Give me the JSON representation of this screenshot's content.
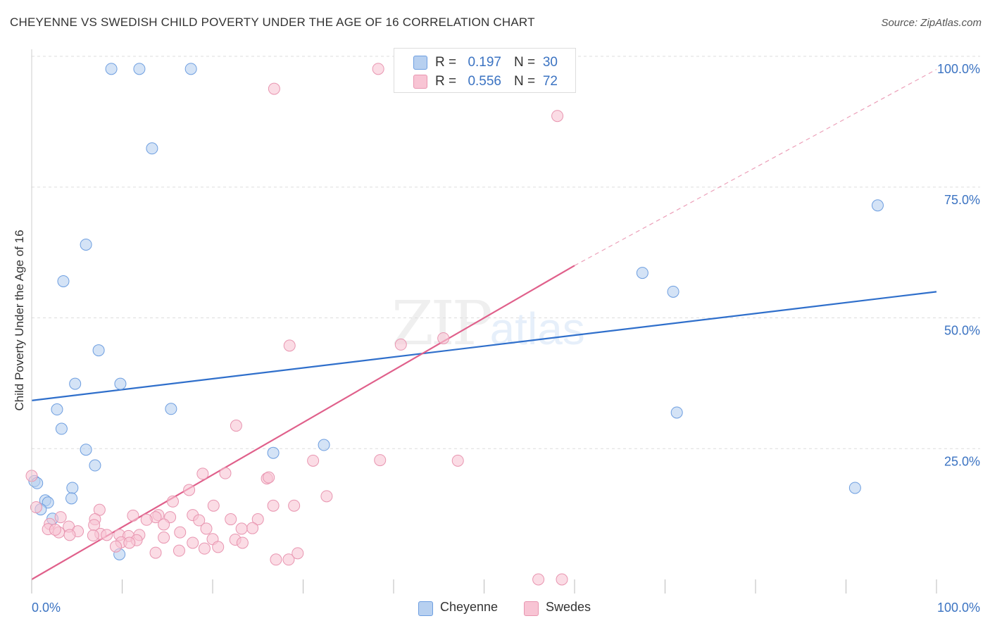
{
  "header": {
    "title": "CHEYENNE VS SWEDISH CHILD POVERTY UNDER THE AGE OF 16 CORRELATION CHART",
    "source": "Source: ZipAtlas.com"
  },
  "watermark": {
    "zip": "ZIP",
    "atlas": "atlas"
  },
  "stats": [
    {
      "r_label": "R =",
      "r_value": "0.197",
      "n_label": "N =",
      "n_value": "30"
    },
    {
      "r_label": "R =",
      "r_value": "0.556",
      "n_label": "N =",
      "n_value": "72"
    }
  ],
  "legend": [
    {
      "label": "Cheyenne"
    },
    {
      "label": "Swedes"
    }
  ],
  "colors": {
    "cheyenne_fill": "#b7d0f0",
    "cheyenne_stroke": "#6d9ee0",
    "cheyenne_line": "#2f6fcb",
    "swedes_fill": "#f8c4d4",
    "swedes_stroke": "#e895b0",
    "swedes_line": "#e0608b",
    "tick_label": "#3b73c2",
    "grid": "#dddddd"
  },
  "chart_data": {
    "type": "scatter",
    "title": "CHEYENNE VS SWEDISH CHILD POVERTY UNDER THE AGE OF 16 CORRELATION CHART",
    "xlabel": "",
    "ylabel": "Child Poverty Under the Age of 16",
    "xlim": [
      0,
      100
    ],
    "ylim": [
      0,
      100
    ],
    "x_ticks": [
      "0.0%",
      "100.0%"
    ],
    "y_ticks": [
      {
        "value": 25,
        "label": "25.0%"
      },
      {
        "value": 50,
        "label": "50.0%"
      },
      {
        "value": 75,
        "label": "75.0%"
      },
      {
        "value": 100,
        "label": "100.0%"
      }
    ],
    "grid": true,
    "legend_position": "bottom-center",
    "series": [
      {
        "name": "Cheyenne",
        "points": [
          [
            8.8,
            97.6
          ],
          [
            11.9,
            97.6
          ],
          [
            17.6,
            97.6
          ],
          [
            13.3,
            82.4
          ],
          [
            93.5,
            71.5
          ],
          [
            6.0,
            64.0
          ],
          [
            3.5,
            57.0
          ],
          [
            67.5,
            58.6
          ],
          [
            70.9,
            55.0
          ],
          [
            7.4,
            43.8
          ],
          [
            4.8,
            37.4
          ],
          [
            9.8,
            37.4
          ],
          [
            2.8,
            32.5
          ],
          [
            15.4,
            32.6
          ],
          [
            3.3,
            28.8
          ],
          [
            71.3,
            31.9
          ],
          [
            6.0,
            24.8
          ],
          [
            32.3,
            25.7
          ],
          [
            26.7,
            24.2
          ],
          [
            7.0,
            21.8
          ],
          [
            0.3,
            18.8
          ],
          [
            0.6,
            18.4
          ],
          [
            4.5,
            17.5
          ],
          [
            4.4,
            15.5
          ],
          [
            1.5,
            15.1
          ],
          [
            1.8,
            14.7
          ],
          [
            1.0,
            13.4
          ],
          [
            2.3,
            11.6
          ],
          [
            91.0,
            17.5
          ],
          [
            9.7,
            4.8
          ]
        ],
        "trend": {
          "x": [
            0,
            100
          ],
          "y": [
            34.2,
            55.0
          ]
        }
      },
      {
        "name": "Swedes",
        "points": [
          [
            38.3,
            97.6
          ],
          [
            26.8,
            93.8
          ],
          [
            56.8,
            97.6
          ],
          [
            58.1,
            88.6
          ],
          [
            28.5,
            44.7
          ],
          [
            40.8,
            44.9
          ],
          [
            45.5,
            46.1
          ],
          [
            22.6,
            29.4
          ],
          [
            31.1,
            22.7
          ],
          [
            38.5,
            22.8
          ],
          [
            47.1,
            22.7
          ],
          [
            0.0,
            19.8
          ],
          [
            18.9,
            20.2
          ],
          [
            21.4,
            20.3
          ],
          [
            26.0,
            19.3
          ],
          [
            26.2,
            19.5
          ],
          [
            17.4,
            17.1
          ],
          [
            15.6,
            14.9
          ],
          [
            32.6,
            15.9
          ],
          [
            7.5,
            13.3
          ],
          [
            20.1,
            14.1
          ],
          [
            26.7,
            14.1
          ],
          [
            29.0,
            14.1
          ],
          [
            0.5,
            13.8
          ],
          [
            14.0,
            12.3
          ],
          [
            17.8,
            12.3
          ],
          [
            11.2,
            12.2
          ],
          [
            3.2,
            11.9
          ],
          [
            13.7,
            11.9
          ],
          [
            15.3,
            11.9
          ],
          [
            7.0,
            11.5
          ],
          [
            12.7,
            11.4
          ],
          [
            18.5,
            11.3
          ],
          [
            22.0,
            11.5
          ],
          [
            25.0,
            11.5
          ],
          [
            2.0,
            10.6
          ],
          [
            4.1,
            10.1
          ],
          [
            6.9,
            10.4
          ],
          [
            14.6,
            10.5
          ],
          [
            19.3,
            9.7
          ],
          [
            24.4,
            9.8
          ],
          [
            23.2,
            9.7
          ],
          [
            1.8,
            9.6
          ],
          [
            3.0,
            9.0
          ],
          [
            5.1,
            9.2
          ],
          [
            7.6,
            8.7
          ],
          [
            9.7,
            8.5
          ],
          [
            11.9,
            8.5
          ],
          [
            16.4,
            9.0
          ],
          [
            2.6,
            9.5
          ],
          [
            4.2,
            8.5
          ],
          [
            10.7,
            8.3
          ],
          [
            6.8,
            8.4
          ],
          [
            8.3,
            8.5
          ],
          [
            9.9,
            7.1
          ],
          [
            11.6,
            7.5
          ],
          [
            14.6,
            8.0
          ],
          [
            17.8,
            7.0
          ],
          [
            20.0,
            7.7
          ],
          [
            22.5,
            7.6
          ],
          [
            23.3,
            7.0
          ],
          [
            9.3,
            6.3
          ],
          [
            10.8,
            7.0
          ],
          [
            13.7,
            5.1
          ],
          [
            16.3,
            5.5
          ],
          [
            19.1,
            5.9
          ],
          [
            20.6,
            6.2
          ],
          [
            27.0,
            3.8
          ],
          [
            28.4,
            3.8
          ],
          [
            29.4,
            5.0
          ],
          [
            56.0,
            0.0
          ],
          [
            58.6,
            0.0
          ]
        ],
        "trend": {
          "x": [
            0,
            60
          ],
          "y": [
            0,
            60
          ]
        },
        "trend_dashed": {
          "x": [
            60,
            100
          ],
          "y": [
            60,
            97.5
          ]
        }
      }
    ]
  }
}
